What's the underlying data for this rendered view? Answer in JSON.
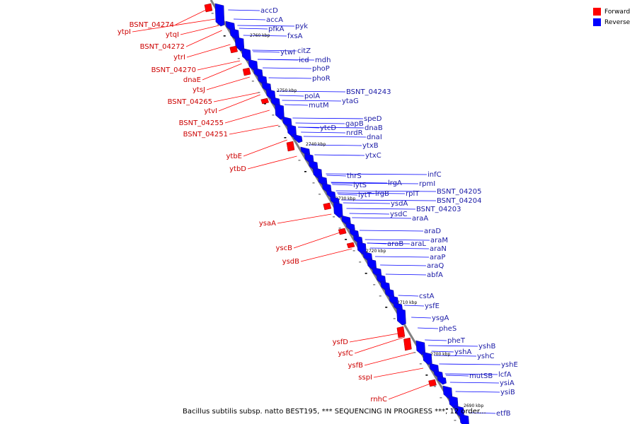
{
  "colors": {
    "forward": "#ff0000",
    "reverse": "#0000ff",
    "forward_label": "#cc0000",
    "reverse_label": "#1a1aa6",
    "backbone": "#808080"
  },
  "legend": {
    "forward": "Forward",
    "reverse": "Reverse"
  },
  "caption": "Bacillus subtilis subsp. natto BEST195, *** SEQUENCING IN PROGRESS ***, 12 order...",
  "ticks": [
    "2760 kbp",
    "2750 kbp",
    "2740 kbp",
    "2730 kbp",
    "2720 kbp",
    "2710 kbp",
    "2700 kbp",
    "2690 kbp"
  ],
  "forward_genes": [
    "BSNT_04274",
    "ytpI",
    "ytqI",
    "BSNT_04272",
    "ytrI",
    "BSNT_04270",
    "dnaE",
    "ytsJ",
    "BSNT_04265",
    "ytvI",
    "BSNT_04255",
    "BSNT_04251",
    "ytbE",
    "ytbD",
    "ysaA",
    "yscB",
    "ysdB",
    "ysfD",
    "ysfC",
    "ysfB",
    "sspI",
    "rnhC"
  ],
  "reverse_genes": [
    "accD",
    "accA",
    "pfkA",
    "pyk",
    "fxsA",
    "ytwI",
    "citZ",
    "icd",
    "mdh",
    "phoP",
    "phoR",
    "polA",
    "BSNT_04243",
    "mutM",
    "ytaG",
    "speD",
    "ytcD",
    "gapB",
    "dnaB",
    "nrdR",
    "dnaI",
    "ytxB",
    "ytxC",
    "thrS",
    "lytS",
    "lrgA",
    "infC",
    "lytT",
    "lrgB",
    "rplT",
    "rpmI",
    "ysdA",
    "BSNT_04205",
    "BSNT_04204",
    "ysdC",
    "BSNT_04203",
    "araA",
    "araD",
    "araB",
    "araL",
    "araM",
    "araN",
    "araP",
    "araQ",
    "abfA",
    "cstA",
    "ysfE",
    "ysgA",
    "pheS",
    "pheT",
    "yshB",
    "yshA",
    "yshC",
    "mutSB",
    "yshE",
    "lcfA",
    "ysiA",
    "ysiB",
    "etfB"
  ]
}
